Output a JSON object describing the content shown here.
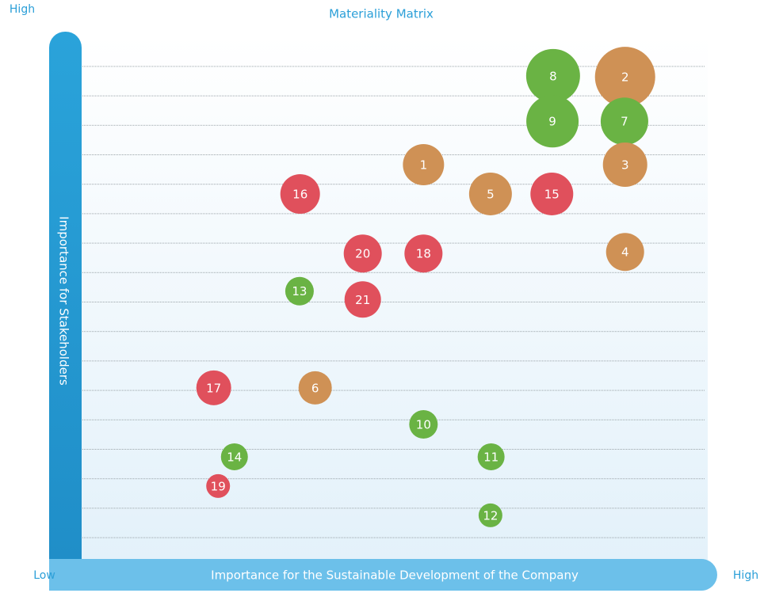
{
  "chart_data": {
    "type": "scatter",
    "title": "Materiality Matrix",
    "xlabel": "Importance for the Sustainable Development of the Company",
    "ylabel": "Importance for Stakeholders",
    "xlim": [
      0,
      100
    ],
    "ylim": [
      0,
      100
    ],
    "xticks": [
      {
        "value": 0,
        "label": "Low"
      },
      {
        "value": 100,
        "label": "High"
      }
    ],
    "yticks": [
      {
        "value": 100,
        "label": "High"
      }
    ],
    "points": [
      {
        "label": "8",
        "x": 75.3,
        "y": 92.3,
        "size": 34,
        "color": "#6ab344"
      },
      {
        "label": "2",
        "x": 86.8,
        "y": 92.1,
        "size": 38,
        "color": "#cf9155"
      },
      {
        "label": "9",
        "x": 75.2,
        "y": 83.6,
        "size": 33,
        "color": "#6ab344"
      },
      {
        "label": "7",
        "x": 86.7,
        "y": 83.6,
        "size": 30,
        "color": "#6ab344"
      },
      {
        "label": "3",
        "x": 86.8,
        "y": 75.3,
        "size": 28,
        "color": "#cf9155"
      },
      {
        "label": "1",
        "x": 54.6,
        "y": 75.3,
        "size": 26,
        "color": "#cf9155"
      },
      {
        "label": "16",
        "x": 34.9,
        "y": 69.7,
        "size": 25,
        "color": "#e0505c"
      },
      {
        "label": "5",
        "x": 65.3,
        "y": 69.7,
        "size": 27,
        "color": "#cf9155"
      },
      {
        "label": "15",
        "x": 75.1,
        "y": 69.7,
        "size": 27,
        "color": "#e0505c"
      },
      {
        "label": "20",
        "x": 44.9,
        "y": 58.3,
        "size": 24,
        "color": "#e0505c"
      },
      {
        "label": "18",
        "x": 54.6,
        "y": 58.3,
        "size": 24,
        "color": "#e0505c"
      },
      {
        "label": "4",
        "x": 86.8,
        "y": 58.6,
        "size": 24,
        "color": "#cf9155"
      },
      {
        "label": "13",
        "x": 34.8,
        "y": 51.1,
        "size": 18,
        "color": "#6ab344"
      },
      {
        "label": "21",
        "x": 44.9,
        "y": 49.5,
        "size": 23,
        "color": "#e0505c"
      },
      {
        "label": "17",
        "x": 21.1,
        "y": 32.6,
        "size": 22,
        "color": "#e0505c"
      },
      {
        "label": "6",
        "x": 37.3,
        "y": 32.6,
        "size": 21,
        "color": "#cf9155"
      },
      {
        "label": "10",
        "x": 54.6,
        "y": 25.6,
        "size": 18,
        "color": "#6ab344"
      },
      {
        "label": "14",
        "x": 24.4,
        "y": 19.4,
        "size": 17,
        "color": "#6ab344"
      },
      {
        "label": "11",
        "x": 65.4,
        "y": 19.4,
        "size": 17,
        "color": "#6ab344"
      },
      {
        "label": "19",
        "x": 21.8,
        "y": 13.8,
        "size": 15,
        "color": "#e0505c"
      },
      {
        "label": "12",
        "x": 65.3,
        "y": 8.2,
        "size": 15,
        "color": "#6ab344"
      }
    ]
  }
}
